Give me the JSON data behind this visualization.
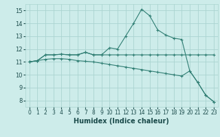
{
  "xlabel": "Humidex (Indice chaleur)",
  "xlim": [
    -0.5,
    23.5
  ],
  "ylim": [
    7.5,
    15.5
  ],
  "yticks": [
    8,
    9,
    10,
    11,
    12,
    13,
    14,
    15
  ],
  "xticks": [
    0,
    1,
    2,
    3,
    4,
    5,
    6,
    7,
    8,
    9,
    10,
    11,
    12,
    13,
    14,
    15,
    16,
    17,
    18,
    19,
    20,
    21,
    22,
    23
  ],
  "bg_color": "#cdecea",
  "line_color": "#2e7d72",
  "grid_color": "#aad4d0",
  "line1_x": [
    0,
    1,
    2,
    3,
    4,
    5,
    6,
    7,
    8,
    9,
    10,
    11,
    12,
    13,
    14,
    15,
    16,
    17,
    18,
    19,
    20,
    21,
    22,
    23
  ],
  "line1_y": [
    11.0,
    11.1,
    11.55,
    11.55,
    11.6,
    11.55,
    11.55,
    11.75,
    11.55,
    11.55,
    11.55,
    11.55,
    11.55,
    11.55,
    11.55,
    11.55,
    11.55,
    11.55,
    11.55,
    11.55,
    11.55,
    11.55,
    11.55,
    11.55
  ],
  "line2_x": [
    0,
    1,
    2,
    3,
    4,
    5,
    6,
    7,
    8,
    9,
    10,
    11,
    12,
    13,
    14,
    15,
    16,
    17,
    18,
    19,
    20,
    21,
    22,
    23
  ],
  "line2_y": [
    11.0,
    11.1,
    11.55,
    11.55,
    11.6,
    11.55,
    11.55,
    11.75,
    11.55,
    11.55,
    12.1,
    12.0,
    13.0,
    14.0,
    15.1,
    14.6,
    13.5,
    13.1,
    12.85,
    12.75,
    10.3,
    9.4,
    8.4,
    7.9
  ],
  "line3_x": [
    0,
    1,
    2,
    3,
    4,
    5,
    6,
    7,
    8,
    9,
    10,
    11,
    12,
    13,
    14,
    15,
    16,
    17,
    18,
    19,
    20,
    21,
    22,
    23
  ],
  "line3_y": [
    11.0,
    11.1,
    11.2,
    11.25,
    11.25,
    11.2,
    11.1,
    11.05,
    11.0,
    10.9,
    10.8,
    10.7,
    10.6,
    10.5,
    10.4,
    10.3,
    10.2,
    10.1,
    10.0,
    9.9,
    10.3,
    9.4,
    8.4,
    7.9
  ]
}
